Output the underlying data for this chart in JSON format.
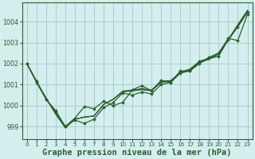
{
  "background_color": "#d4eeee",
  "grid_color": "#aacccc",
  "line_color": "#2a6030",
  "xlabel": "Graphe pression niveau de la mer (hPa)",
  "xlabel_fontsize": 7.5,
  "ylim": [
    998.4,
    1004.9
  ],
  "xlim": [
    -0.5,
    23.5
  ],
  "yticks": [
    999,
    1000,
    1001,
    1002,
    1003,
    1004
  ],
  "xticks": [
    0,
    1,
    2,
    3,
    4,
    5,
    6,
    7,
    8,
    9,
    10,
    11,
    12,
    13,
    14,
    15,
    16,
    17,
    18,
    19,
    20,
    21,
    22,
    23
  ],
  "line_wavy": [
    1002.0,
    1001.1,
    1000.3,
    999.7,
    999.0,
    999.3,
    999.15,
    999.35,
    999.9,
    1000.15,
    1000.6,
    1000.5,
    1000.65,
    1000.55,
    1001.0,
    1001.1,
    1001.55,
    1001.65,
    1002.1,
    1002.25,
    1002.35,
    1003.15,
    1003.75,
    1004.45
  ],
  "line_smooth_1": [
    1002.0,
    1001.15,
    1000.35,
    999.6,
    998.95,
    999.35,
    999.45,
    999.5,
    1000.05,
    1000.3,
    1000.65,
    1000.7,
    1000.75,
    1000.7,
    1001.1,
    1001.15,
    1001.55,
    1001.7,
    1002.05,
    1002.2,
    1002.45,
    1003.1,
    1003.8,
    1004.5
  ],
  "line_smooth_2": [
    1002.0,
    1001.15,
    1000.35,
    999.6,
    998.95,
    999.35,
    999.45,
    999.5,
    1000.05,
    1000.3,
    1000.67,
    1000.72,
    1000.78,
    1000.72,
    1001.13,
    1001.17,
    1001.57,
    1001.72,
    1002.08,
    1002.23,
    1002.48,
    1003.13,
    1003.83,
    1004.52
  ],
  "line_smooth_3": [
    1002.0,
    1001.15,
    1000.35,
    999.6,
    998.95,
    999.35,
    999.45,
    999.5,
    1000.05,
    1000.3,
    1000.69,
    1000.74,
    1000.81,
    1000.74,
    1001.16,
    1001.19,
    1001.59,
    1001.74,
    1002.11,
    1002.26,
    1002.51,
    1003.16,
    1003.86,
    1004.54
  ],
  "line_zigzag": [
    1002.0,
    1001.15,
    1000.3,
    999.75,
    999.0,
    999.4,
    999.95,
    999.85,
    1000.2,
    1000.0,
    1000.15,
    1000.75,
    1000.95,
    1000.7,
    1001.2,
    1001.1,
    1001.65,
    1001.65,
    1002.0,
    1002.3,
    1002.5,
    1003.2,
    1003.1,
    1004.35
  ]
}
